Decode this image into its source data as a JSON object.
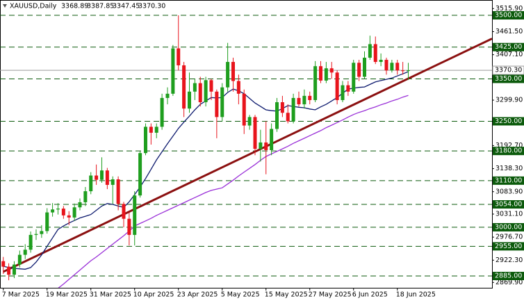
{
  "chart_data": {
    "type": "candlestick",
    "symbol": "XAUUSD,Daily",
    "header_ohlc": [
      "3368.89",
      "3387.85",
      "3347.45",
      "3370.30"
    ],
    "categories": [
      "7 Mar 2025",
      null,
      null,
      null,
      null,
      null,
      null,
      null,
      "19 Mar 2025",
      null,
      null,
      null,
      null,
      null,
      null,
      null,
      "31 Mar 2025",
      null,
      null,
      null,
      null,
      null,
      null,
      null,
      "10 Apr 2025",
      null,
      null,
      null,
      null,
      null,
      null,
      null,
      "23 Apr 2025",
      null,
      null,
      null,
      null,
      null,
      null,
      null,
      "5 May 2025",
      null,
      null,
      null,
      null,
      null,
      null,
      null,
      "15 May 2025",
      null,
      null,
      null,
      null,
      null,
      null,
      null,
      "27 May 2025",
      null,
      null,
      null,
      null,
      null,
      null,
      null,
      "6 Jun 2025",
      null,
      null,
      null,
      null,
      null,
      null,
      null,
      "18 Jun 2025",
      null,
      null
    ],
    "candles": {
      "open": [
        2920,
        2907,
        2888,
        2912,
        2935,
        2947,
        2982,
        2984,
        2991,
        3035,
        3042,
        3044,
        3028,
        3023,
        3047,
        3059,
        3085,
        3122,
        3112,
        3134,
        3100,
        3113,
        3055,
        3020,
        2982,
        3075,
        3175,
        3237,
        3223,
        3237,
        3305,
        3315,
        3422,
        3382,
        3280,
        3320,
        3340,
        3295,
        3347,
        3320,
        3260,
        3330,
        3390,
        3345,
        3315,
        3240,
        3260,
        3185,
        3200,
        3182,
        3232,
        3295,
        3270,
        3250,
        3305,
        3290,
        3310,
        3300,
        3380,
        3346,
        3375,
        3365,
        3300,
        3335,
        3320,
        3388,
        3355,
        3400,
        3432,
        3390,
        3395,
        3370,
        3388,
        3370,
        3368.89
      ],
      "high": [
        2930,
        2915,
        2920,
        2945,
        2960,
        2990,
        2995,
        3005,
        3045,
        3057,
        3057,
        3050,
        3038,
        3056,
        3068,
        3095,
        3130,
        3148,
        3165,
        3140,
        3120,
        3120,
        3060,
        3035,
        3085,
        3180,
        3245,
        3245,
        3245,
        3315,
        3330,
        3430,
        3500,
        3390,
        3365,
        3350,
        3355,
        3355,
        3350,
        3325,
        3340,
        3435,
        3400,
        3360,
        3325,
        3265,
        3265,
        3230,
        3250,
        3245,
        3305,
        3310,
        3290,
        3315,
        3320,
        3325,
        3320,
        3392,
        3392,
        3390,
        3390,
        3370,
        3345,
        3345,
        3395,
        3395,
        3415,
        3452,
        3450,
        3410,
        3400,
        3395,
        3395,
        3390,
        3387.85
      ],
      "low": [
        2890,
        2875,
        2880,
        2905,
        2925,
        2940,
        2970,
        2975,
        2985,
        3025,
        3030,
        3020,
        3005,
        3015,
        3040,
        3050,
        3078,
        3100,
        3105,
        3090,
        3055,
        3040,
        3000,
        2957,
        2957,
        3070,
        3170,
        3195,
        3210,
        3230,
        3290,
        3310,
        3370,
        3260,
        3270,
        3300,
        3285,
        3285,
        3300,
        3210,
        3250,
        3320,
        3320,
        3290,
        3220,
        3230,
        3170,
        3155,
        3125,
        3170,
        3225,
        3260,
        3245,
        3245,
        3285,
        3280,
        3290,
        3295,
        3340,
        3340,
        3350,
        3290,
        3295,
        3310,
        3315,
        3345,
        3350,
        3395,
        3385,
        3380,
        3360,
        3365,
        3360,
        3360,
        3347.45
      ],
      "close": [
        2907,
        2888,
        2912,
        2935,
        2947,
        2982,
        2984,
        2991,
        3035,
        3042,
        3044,
        3028,
        3023,
        3047,
        3059,
        3085,
        3122,
        3112,
        3134,
        3100,
        3113,
        3055,
        3020,
        2982,
        3075,
        3175,
        3237,
        3223,
        3237,
        3305,
        3315,
        3422,
        3382,
        3280,
        3320,
        3340,
        3295,
        3347,
        3320,
        3260,
        3330,
        3390,
        3345,
        3315,
        3240,
        3260,
        3185,
        3200,
        3182,
        3232,
        3295,
        3270,
        3250,
        3305,
        3290,
        3310,
        3300,
        3380,
        3346,
        3375,
        3365,
        3300,
        3335,
        3320,
        3388,
        3355,
        3400,
        3432,
        3390,
        3395,
        3370,
        3388,
        3370,
        3368.89,
        3370.3
      ]
    },
    "up_color": "#1e9e1e",
    "down_color": "#e8141c",
    "series": [
      {
        "color": "#0d1a6e",
        "values": [
          2908,
          2905,
          2903,
          2902,
          2901,
          2905,
          2918,
          2935,
          2955,
          2975,
          2995,
          3003,
          3010,
          3016,
          3022,
          3026,
          3030,
          3040,
          3050,
          3056,
          3054,
          3050,
          3047,
          3060,
          3077,
          3095,
          3115,
          3137,
          3159,
          3178,
          3197,
          3215,
          3233,
          3248,
          3262,
          3277,
          3290,
          3298,
          3306,
          3305,
          3306,
          3318,
          3326,
          3322,
          3315,
          3304,
          3293,
          3285,
          3277,
          3275,
          3274,
          3280,
          3287,
          3285,
          3283,
          3282,
          3279,
          3277,
          3284,
          3290,
          3298,
          3306,
          3316,
          3326,
          3328,
          3330,
          3331,
          3337,
          3343,
          3346,
          3349,
          3352,
          3357,
          3362,
          3367
        ]
      },
      {
        "color": "#9a30d8",
        "values": [
          null,
          null,
          null,
          null,
          null,
          null,
          null,
          null,
          null,
          2845,
          2856,
          2866,
          2877,
          2888,
          2899,
          2910,
          2921,
          2930,
          2940,
          2950,
          2960,
          2970,
          2980,
          2991,
          3003,
          3009,
          3015,
          3021,
          3028,
          3034,
          3040,
          3046,
          3052,
          3058,
          3064,
          3070,
          3076,
          3082,
          3087,
          3090,
          3093,
          3102,
          3111,
          3121,
          3130,
          3139,
          3148,
          3158,
          3167,
          3173,
          3179,
          3185,
          3191,
          3198,
          3204,
          3210,
          3216,
          3222,
          3228,
          3235,
          3241,
          3247,
          3253,
          3260,
          3266,
          3271,
          3275,
          3280,
          3284,
          3289,
          3293,
          3298,
          3302,
          3307,
          3311
        ]
      }
    ],
    "trendline": {
      "color": "#8b1010",
      "x": [
        0,
        89.3
      ],
      "values": [
        2895,
        3445
      ]
    },
    "xlim": [
      -0.6,
      89.3
    ],
    "ylim": [
      2857.2,
      3536.1
    ],
    "yticks": [
      {
        "value": 3515.9,
        "label": "3515.90"
      },
      {
        "value": 3461.5,
        "label": "3461.50"
      },
      {
        "value": 3407.1,
        "label": "3407.10"
      },
      {
        "value": 3299.9,
        "label": "3299.90"
      },
      {
        "value": 3192.7,
        "label": "3192.70"
      },
      {
        "value": 3138.3,
        "label": "3138.30"
      },
      {
        "value": 3083.9,
        "label": "3083.90"
      },
      {
        "value": 3031.1,
        "label": "3031.10"
      },
      {
        "value": 2976.7,
        "label": "2976.70"
      },
      {
        "value": 2922.3,
        "label": "2922.30"
      },
      {
        "value": 2869.9,
        "label": "2869.90"
      }
    ],
    "levels": [
      {
        "value": 3500,
        "label": "3500.00"
      },
      {
        "value": 3425,
        "label": "3425.00"
      },
      {
        "value": 3350,
        "label": "3350.00"
      },
      {
        "value": 3250,
        "label": "3250.00"
      },
      {
        "value": 3180,
        "label": "3180.00"
      },
      {
        "value": 3110,
        "label": "3110.00"
      },
      {
        "value": 3054,
        "label": "3054.00"
      },
      {
        "value": 3000,
        "label": "3000.00"
      },
      {
        "value": 2955,
        "label": "2955.00"
      },
      {
        "value": 2885,
        "label": "2885.00"
      }
    ],
    "level_color": "#0b5a0b",
    "current_price": {
      "value": 3370.3,
      "label": "3370.30"
    },
    "current_color": "#9a9a9a"
  }
}
